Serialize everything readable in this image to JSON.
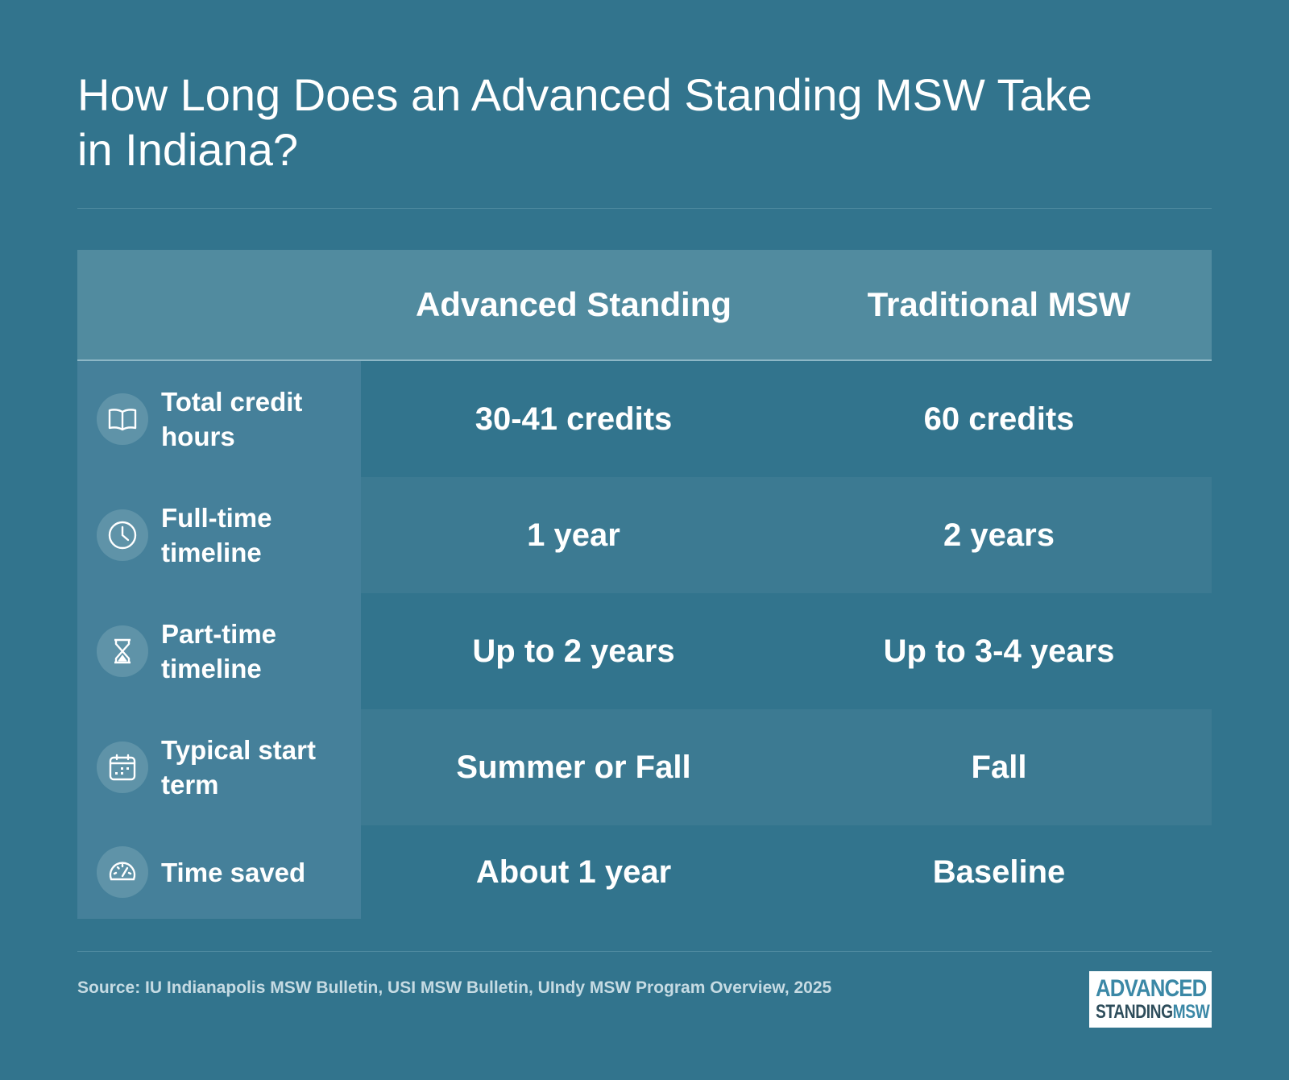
{
  "title": "How Long Does an Advanced Standing MSW Take in Indiana?",
  "table": {
    "columns": [
      "Advanced Standing",
      "Traditional MSW"
    ],
    "rows": [
      {
        "icon": "book-icon",
        "label": "Total credit hours",
        "advanced": "30-41 credits",
        "traditional": "60 credits"
      },
      {
        "icon": "clock-icon",
        "label": "Full-time timeline",
        "advanced": "1 year",
        "traditional": "2 years"
      },
      {
        "icon": "hourglass-icon",
        "label": "Part-time timeline",
        "advanced": "Up to 2 years",
        "traditional": "Up to 3-4 years"
      },
      {
        "icon": "calendar-icon",
        "label": "Typical start term",
        "advanced": "Summer or Fall",
        "traditional": "Fall"
      },
      {
        "icon": "speedometer-icon",
        "label": "Time saved",
        "advanced": "About 1 year",
        "traditional": "Baseline"
      }
    ]
  },
  "source": "Source: IU Indianapolis MSW Bulletin, USI MSW Bulletin, UIndy MSW Program Overview, 2025",
  "logo": {
    "line1": "ADVANCED",
    "line2a": "STANDING",
    "line2b": "MSW"
  },
  "colors": {
    "background": "#32748d",
    "header": "#518b9f",
    "label_column": "#45809a"
  }
}
